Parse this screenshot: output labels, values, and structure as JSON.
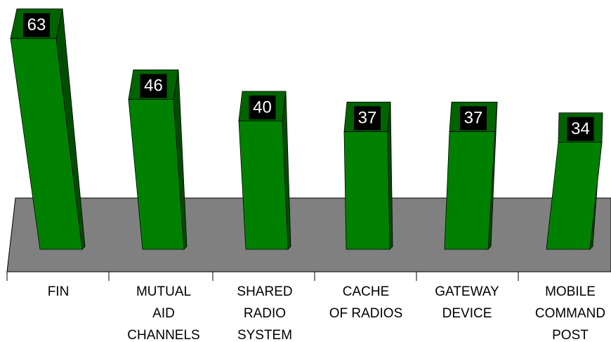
{
  "chart_data": {
    "type": "bar3d",
    "categories": [
      [
        "FIN"
      ],
      [
        "MUTUAL",
        "AID",
        "CHANNELS"
      ],
      [
        "SHARED",
        "RADIO",
        "SYSTEM"
      ],
      [
        "CACHE",
        "OF RADIOS"
      ],
      [
        "GATEWAY",
        "DEVICE"
      ],
      [
        "MOBILE",
        "COMMAND",
        "POST"
      ]
    ],
    "values": [
      63,
      46,
      40,
      37,
      37,
      34
    ],
    "color": "#008000",
    "floor_color": "#808080"
  }
}
